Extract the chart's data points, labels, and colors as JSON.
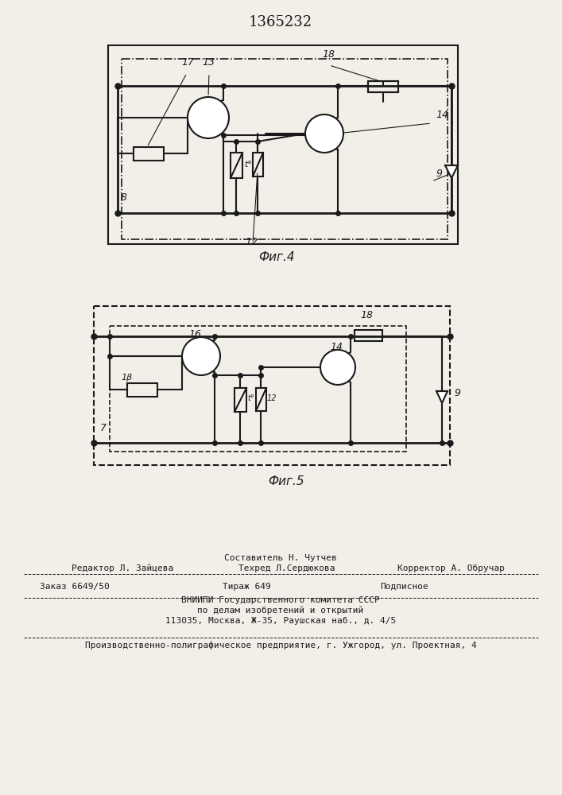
{
  "title": "1365232",
  "fig4_label": "Фиг.4",
  "fig5_label": "Фиг.5",
  "background_color": "#f2efe9",
  "line_color": "#1a1a1a",
  "footer_line1": "Составитель Н. Чутчев",
  "footer_line2a": "Редактор Л. Зайцева",
  "footer_line2b": "Техред Л.Сердюкова",
  "footer_line2c": "Корректор А. Обручар",
  "footer_line3a": "Заказ 6649/50",
  "footer_line3b": "Тираж 649",
  "footer_line3c": "Подписное",
  "footer_line4": "ВНИИПИ Государственного комитета СССР",
  "footer_line5": "по делам изобретений и открытий",
  "footer_line6": "113035, Москва, Ж-35, Раушская наб., д. 4/5",
  "footer_line7": "Производственно-полиграфическое предприятие, г. Ужгород, ул. Проектная, 4"
}
